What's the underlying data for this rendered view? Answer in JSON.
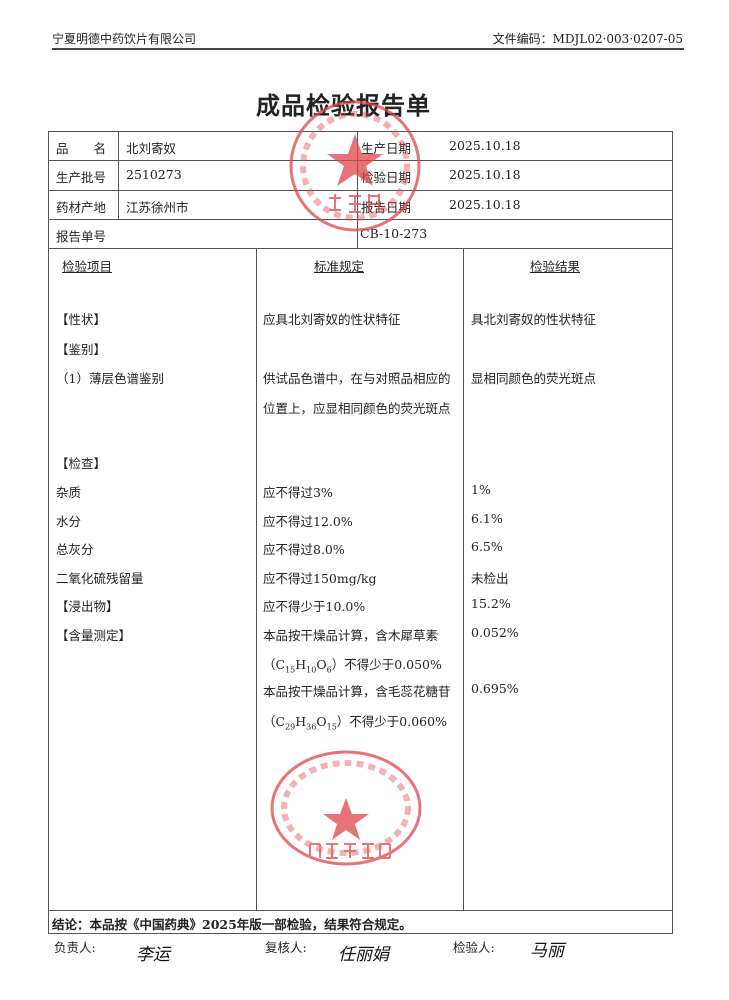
{
  "header": {
    "company": "宁夏明德中药饮片有限公司",
    "doc_code": "文件编码：MDJL02·003·0207-05"
  },
  "title": "成品检验报告单",
  "info": {
    "name_label": "品　　名",
    "name": "北刘寄奴",
    "batch_label": "生产批号",
    "batch": "2510273",
    "origin_label": "药材产地",
    "origin": "江苏徐州市",
    "report_no_label": "报告单号",
    "report_no": "CB-10-273",
    "prod_date_label": "生产日期",
    "prod_date": "2025.10.18",
    "test_date_label": "检验日期",
    "test_date": "2025.10.18",
    "report_date_label": "报告日期",
    "report_date": "2025.10.18"
  },
  "columns": {
    "item": "检验项目",
    "standard": "标准规定",
    "result": "检验结果"
  },
  "rows": [
    {
      "item": "【性状】",
      "standard": "应具北刘寄奴的性状特征",
      "result": "具北刘寄奴的性状特征"
    },
    {
      "item": "【鉴别】",
      "standard": "",
      "result": ""
    },
    {
      "item": "（1）薄层色谱鉴别",
      "standard": "供试品色谱中，在与对照品相应的",
      "result": "显相同颜色的荧光斑点"
    },
    {
      "item": "",
      "standard": "位置上，应显相同颜色的荧光斑点",
      "result": ""
    },
    {
      "item": "【检查】",
      "standard": "",
      "result": ""
    },
    {
      "item": "杂质",
      "standard": "应不得过3%",
      "result": "1%"
    },
    {
      "item": "水分",
      "standard": "应不得过12.0%",
      "result": "6.1%"
    },
    {
      "item": "总灰分",
      "standard": "应不得过8.0%",
      "result": "6.5%"
    },
    {
      "item": "二氧化硫残留量",
      "standard": "应不得过150mg/kg",
      "result": "未检出"
    },
    {
      "item": "【浸出物】",
      "standard": "应不得少于10.0%",
      "result": "15.2%"
    },
    {
      "item": "【含量测定】",
      "standard": "本品按干燥品计算，含木犀草素",
      "result": "0.052%"
    },
    {
      "item": "",
      "standard": "（C15H10O6）不得少于0.050%",
      "result": ""
    },
    {
      "item": "",
      "standard": "本品按干燥品计算，含毛蕊花糖苷",
      "result": "0.695%"
    },
    {
      "item": "",
      "standard": "（C29H36O15）不得少于0.060%",
      "result": ""
    }
  ],
  "conclusion": "结论：本品按《中国药典》2025年版一部检验，结果符合规定。",
  "signatures": {
    "responsible_label": "负责人:",
    "reviewer_label": "复核人:",
    "inspector_label": "检验人:",
    "responsible": "李运",
    "reviewer": "任丽娟",
    "inspector": "马丽"
  },
  "stamps": {
    "top": "宁夏明德中药饮片有限公司 质量部",
    "bottom": "宁夏明德中药饮片有限公司 质检专用章",
    "color": "#e0454a"
  }
}
